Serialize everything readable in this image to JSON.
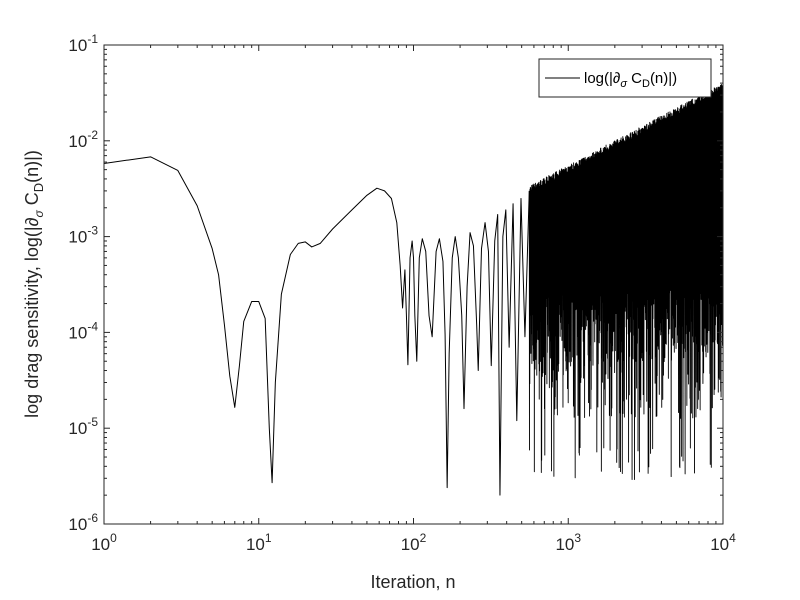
{
  "chart_data": {
    "type": "line",
    "xscale": "log",
    "yscale": "log",
    "xlim": [
      1,
      10000
    ],
    "ylim": [
      1e-06,
      0.1
    ],
    "xlabel": "Iteration, n",
    "ylabel": {
      "prefix": "log drag sensitivity, log(|",
      "sym": "∂",
      "sub": "σ",
      "mid": " C",
      "sub2": "D",
      "suffix": "(n)|)"
    },
    "x_ticks": [
      {
        "base": "10",
        "exp": "0"
      },
      {
        "base": "10",
        "exp": "1"
      },
      {
        "base": "10",
        "exp": "2"
      },
      {
        "base": "10",
        "exp": "3"
      },
      {
        "base": "10",
        "exp": "4"
      }
    ],
    "y_ticks": [
      {
        "base": "10",
        "exp": "-6"
      },
      {
        "base": "10",
        "exp": "-5"
      },
      {
        "base": "10",
        "exp": "-4"
      },
      {
        "base": "10",
        "exp": "-3"
      },
      {
        "base": "10",
        "exp": "-2"
      },
      {
        "base": "10",
        "exp": "-1"
      }
    ],
    "legend": {
      "placement": "top-right",
      "label": {
        "prefix": "log(|",
        "sym": "∂",
        "sub": "σ",
        "mid": " C",
        "sub2": "D",
        "suffix": "(n)|)"
      }
    },
    "grid": false,
    "series": [
      {
        "color": "#000000",
        "points": [
          [
            1,
            0.0058
          ],
          [
            2,
            0.0068
          ],
          [
            3,
            0.0049
          ],
          [
            4,
            0.0021
          ],
          [
            5,
            0.00075
          ],
          [
            5.5,
            0.0004
          ],
          [
            6,
            0.00012
          ],
          [
            6.5,
            3.5e-05
          ],
          [
            7,
            1.65e-05
          ],
          [
            7.5,
            4.5e-05
          ],
          [
            8,
            0.00013
          ],
          [
            9,
            0.00021
          ],
          [
            10,
            0.00021
          ],
          [
            11,
            0.00014
          ],
          [
            11.7,
            1e-05
          ],
          [
            12.2,
            2.7e-06
          ],
          [
            12.8,
            3e-05
          ],
          [
            14,
            0.00025
          ],
          [
            16,
            0.00065
          ],
          [
            18,
            0.00085
          ],
          [
            20,
            0.00088
          ],
          [
            22,
            0.00078
          ],
          [
            25,
            0.00085
          ],
          [
            30,
            0.0012
          ],
          [
            40,
            0.0019
          ],
          [
            50,
            0.0027
          ],
          [
            58,
            0.0032
          ],
          [
            65,
            0.003
          ],
          [
            72,
            0.0025
          ],
          [
            78,
            0.0014
          ],
          [
            82,
            0.0005
          ],
          [
            85,
            0.00018
          ],
          [
            88,
            0.00045
          ],
          [
            90,
            0.00015
          ],
          [
            92,
            4.6e-05
          ],
          [
            95,
            0.0006
          ],
          [
            98,
            0.0009
          ],
          [
            100,
            0.0006
          ],
          [
            102,
            0.00015
          ],
          [
            105,
            5e-05
          ],
          [
            109,
            0.0006
          ],
          [
            114,
            0.00095
          ],
          [
            120,
            0.0007
          ],
          [
            126,
            0.00015
          ],
          [
            132,
            9e-05
          ],
          [
            140,
            0.0007
          ],
          [
            147,
            0.00095
          ],
          [
            155,
            0.00055
          ],
          [
            160,
            9.5e-05
          ],
          [
            165,
            2.4e-06
          ],
          [
            170,
            6e-05
          ],
          [
            178,
            0.0006
          ],
          [
            186,
            0.001
          ],
          [
            195,
            0.0006
          ],
          [
            205,
            0.00015
          ],
          [
            212,
            1.6e-05
          ],
          [
            222,
            0.0003
          ],
          [
            232,
            0.0011
          ],
          [
            244,
            0.0008
          ],
          [
            256,
            0.00012
          ],
          [
            262,
            4e-05
          ],
          [
            275,
            0.00075
          ],
          [
            290,
            0.0014
          ],
          [
            305,
            0.0007
          ],
          [
            318,
            4.5e-05
          ],
          [
            335,
            0.0009
          ],
          [
            350,
            0.0017
          ],
          [
            362,
            2e-06
          ],
          [
            378,
            0.001
          ],
          [
            395,
            0.0019
          ],
          [
            415,
            7e-05
          ],
          [
            440,
            0.0022
          ],
          [
            465,
            1.2e-05
          ],
          [
            495,
            0.0025
          ],
          [
            525,
            9e-05
          ],
          [
            560,
            0.003
          ]
        ]
      }
    ]
  }
}
